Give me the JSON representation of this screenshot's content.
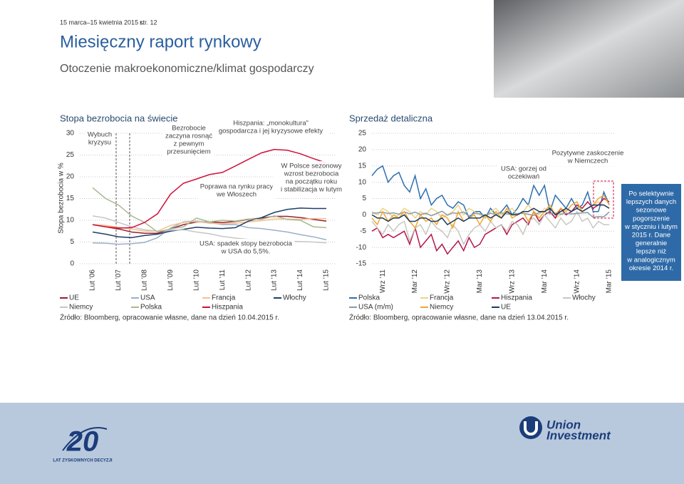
{
  "header": {
    "date": "15 marca–15 kwietnia 2015 r.",
    "page": "str. 12",
    "title": "Miesięczny raport rynkowy",
    "subtitle": "Otoczenie makroekonomiczne/klimat gospodarczy"
  },
  "chart_data": [
    {
      "type": "line",
      "title": "Stopa bezrobocia na świecie",
      "y_label": "Stopa bezrobocia w %",
      "categories": [
        "Lut ’06",
        null,
        "Lut ’07",
        null,
        "Lut ’08",
        null,
        "Lut ’09",
        null,
        "Lut ’10",
        null,
        "Lut ’11",
        null,
        "Lut ’12",
        null,
        "Lut ’13",
        null,
        "Lut ’14",
        null,
        "Lut ’15"
      ],
      "ylim": [
        0,
        30
      ],
      "yticks": [
        0,
        5,
        10,
        15,
        20,
        25,
        30
      ],
      "grid": true,
      "series": [
        {
          "name": "UE",
          "color": "#9a1f2e",
          "values": [
            9.0,
            8.5,
            8.0,
            7.3,
            7.0,
            7.0,
            8.0,
            9.0,
            9.6,
            9.6,
            9.5,
            9.7,
            10.2,
            10.5,
            10.9,
            10.9,
            10.6,
            10.2,
            9.8
          ]
        },
        {
          "name": "USA",
          "color": "#9ab0c8",
          "values": [
            4.8,
            4.7,
            4.5,
            4.6,
            4.9,
            6.0,
            8.2,
            9.6,
            9.8,
            9.5,
            9.0,
            9.0,
            8.3,
            8.1,
            7.7,
            7.3,
            6.7,
            6.2,
            5.5
          ]
        },
        {
          "name": "Francja",
          "color": "#f4c08c",
          "values": [
            9.0,
            8.8,
            8.4,
            8.0,
            7.5,
            7.5,
            8.8,
            9.5,
            9.7,
            9.3,
            9.2,
            9.3,
            9.6,
            9.9,
            10.3,
            10.3,
            10.2,
            10.4,
            10.4
          ]
        },
        {
          "name": "Włochy",
          "color": "#1e3f66",
          "values": [
            7.3,
            6.8,
            6.2,
            6.0,
            6.5,
            6.8,
            7.5,
            7.9,
            8.4,
            8.2,
            8.1,
            8.3,
            9.8,
            10.6,
            11.8,
            12.5,
            12.8,
            12.7,
            12.7
          ]
        },
        {
          "name": "Niemcy",
          "color": "#c6c6c6",
          "values": [
            11.0,
            10.5,
            9.5,
            8.5,
            7.8,
            7.5,
            7.7,
            7.8,
            7.3,
            6.9,
            6.3,
            5.9,
            5.6,
            5.4,
            5.4,
            5.2,
            5.1,
            5.0,
            4.8
          ]
        },
        {
          "name": "Polska",
          "color": "#a8b890",
          "values": [
            17.5,
            15.0,
            13.5,
            11.0,
            9.5,
            7.3,
            8.0,
            8.5,
            10.5,
            9.6,
            10.0,
            9.8,
            10.3,
            10.2,
            11.0,
            10.2,
            10.0,
            8.5,
            8.3
          ]
        },
        {
          "name": "Hiszpania",
          "color": "#d0103a",
          "values": [
            9.0,
            8.5,
            8.2,
            8.3,
            9.5,
            11.5,
            16.0,
            18.5,
            19.5,
            20.5,
            21.0,
            22.5,
            24.0,
            25.5,
            26.3,
            26.1,
            25.3,
            24.2,
            23.2
          ]
        }
      ],
      "annotations": [
        [
          "Wybuch",
          "kryzysu"
        ],
        [
          "Bezrobocie",
          "zaczyna rosnąć",
          "z pewnym",
          "przesunięciem"
        ],
        [
          "Hiszpania: „monokultura”",
          "gospodarcza i jej kryzysowe efekty"
        ],
        [
          "Poprawa na rynku pracy",
          "we Włoszech"
        ],
        [
          "W Polsce sezonowy",
          "wzrost bezrobocia",
          "na początku roku",
          "i stabilizacja w lutym"
        ],
        [
          "USA: spadek stopy bezrobocia",
          "w USA do 5,5%."
        ]
      ],
      "source": "Źródło: Bloomberg, opracowanie własne, dane na dzień 10.04.2015 r."
    },
    {
      "type": "line",
      "title": "Sprzedaż detaliczna",
      "categories": [
        null,
        null,
        "Wrz ’11",
        null,
        null,
        null,
        null,
        null,
        "Mar ’12",
        null,
        null,
        null,
        null,
        null,
        "Wrz ’12",
        null,
        null,
        null,
        null,
        null,
        "Mar ’13",
        null,
        null,
        null,
        null,
        null,
        "Wrz ’13",
        null,
        null,
        null,
        null,
        null,
        "Mar ’14",
        null,
        null,
        null,
        null,
        null,
        "Wrz ’14",
        null,
        null,
        null,
        null,
        null,
        "Mar ’15"
      ],
      "ylim": [
        -15,
        25
      ],
      "yticks": [
        25,
        20,
        15,
        10,
        5,
        0,
        -5,
        -10,
        -15
      ],
      "grid": true,
      "series": [
        {
          "name": "Polska",
          "color": "#2d6fb0",
          "values": [
            12,
            14,
            15,
            10,
            12,
            13,
            9,
            7,
            12,
            5,
            8,
            3,
            5,
            6,
            3,
            2,
            4,
            3,
            -1,
            1,
            1,
            -1,
            2,
            0,
            1,
            3,
            0,
            2,
            5,
            3,
            9,
            6,
            9,
            1,
            6,
            4,
            2,
            5,
            2,
            3,
            7,
            1,
            1,
            7,
            3
          ]
        },
        {
          "name": "Francja",
          "color": "#ecd48a",
          "values": [
            1,
            0,
            2,
            1,
            -1,
            0,
            2,
            1,
            -1,
            1,
            0,
            2,
            1,
            -1,
            0,
            1,
            3,
            0,
            2,
            1,
            0,
            -1,
            1,
            2,
            0,
            1,
            2,
            0,
            1,
            3,
            1,
            0,
            2,
            1,
            -1,
            0,
            2,
            1,
            3,
            1,
            2,
            3,
            4,
            3,
            2
          ]
        },
        {
          "name": "Hiszpania",
          "color": "#b5174b",
          "values": [
            -5,
            -4,
            -7,
            -6,
            -7,
            -6,
            -5,
            -9,
            -4,
            -10,
            -8,
            -6,
            -11,
            -9,
            -12,
            -10,
            -8,
            -11,
            -7,
            -10,
            -9,
            -6,
            -5,
            -4,
            -3,
            -6,
            -3,
            -2,
            -1,
            -3,
            1,
            -2,
            0,
            1,
            -1,
            2,
            0,
            1,
            3,
            2,
            4,
            2,
            3,
            5,
            4
          ]
        },
        {
          "name": "Włochy",
          "color": "#c8c8c0",
          "values": [
            -2,
            -4,
            -6,
            -3,
            -5,
            -3,
            -2,
            -8,
            -4,
            -3,
            -6,
            -2,
            -4,
            -5,
            -7,
            -3,
            -5,
            -9,
            -6,
            -4,
            -3,
            -5,
            -2,
            -4,
            -3,
            -5,
            -2,
            -3,
            -6,
            -2,
            -1,
            -3,
            0,
            -2,
            -4,
            -1,
            -3,
            -2,
            1,
            -2,
            -1,
            -4,
            -2,
            -3,
            -3
          ]
        },
        {
          "name": "USA (m/m)",
          "color": "#8a9aa8",
          "values": [
            0.5,
            0.6,
            0.8,
            0.4,
            0.6,
            0.2,
            0.9,
            0.3,
            0.8,
            0.1,
            0.5,
            -0.3,
            0.4,
            1.1,
            -0.1,
            0.6,
            0.4,
            0.9,
            -0.4,
            0.5,
            0.3,
            -0.2,
            0.5,
            0.2,
            0.6,
            0.3,
            0.1,
            0.4,
            0.5,
            0.2,
            -0.2,
            0.7,
            1.0,
            0.3,
            0.6,
            0.2,
            0.5,
            0.3,
            0.4,
            0.6,
            0.7,
            -0.8,
            -0.5,
            -0.6,
            0.9
          ]
        },
        {
          "name": "Niemcy",
          "color": "#f0a830",
          "values": [
            -1,
            -3,
            1,
            -2,
            0,
            -1,
            1,
            -2,
            -4,
            0,
            -2,
            -1,
            -3,
            0,
            -1,
            -4,
            1,
            -2,
            -1,
            0,
            -3,
            0,
            -2,
            1,
            -1,
            2,
            -1,
            0,
            1,
            -2,
            1,
            -1,
            1,
            3,
            0,
            2,
            1,
            3,
            4,
            1,
            2,
            3,
            5,
            6,
            3
          ]
        },
        {
          "name": "UE",
          "color": "#1e3a5f",
          "values": [
            0,
            -1,
            -1,
            -2,
            -1,
            -1,
            0,
            -2,
            -2,
            -1,
            -1,
            -2,
            -2,
            -1,
            -3,
            -2,
            -1,
            -2,
            -1,
            -1,
            -1,
            0,
            -1,
            0,
            -1,
            1,
            0,
            0,
            1,
            1,
            2,
            1,
            1,
            2,
            0,
            1,
            2,
            1,
            2,
            1,
            2,
            3,
            3,
            3,
            2
          ]
        }
      ],
      "annotations": [
        [
          "USA: gorzej od",
          "oczekiwań"
        ],
        [
          "Pozytywne zaskoczenie",
          "w Niemczech"
        ]
      ],
      "side_note": [
        "Po selektywnie",
        "lepszych danych",
        "sezonowe",
        "pogorszenie",
        "w styczniu i lutym",
        "2015 r. Dane",
        "generalnie",
        "lepsze niż",
        "w analogicznym",
        "okresie 2014 r."
      ],
      "source": "Źródło: Bloomberg, opracowanie własne, dane na dzień 13.04.2015 r."
    }
  ],
  "footer": {
    "anniversary_number": "20",
    "anniversary_text": "LAT ZYSKOWNYCH DECYZJI",
    "brand_line1": "Union",
    "brand_line2": "Investment"
  }
}
